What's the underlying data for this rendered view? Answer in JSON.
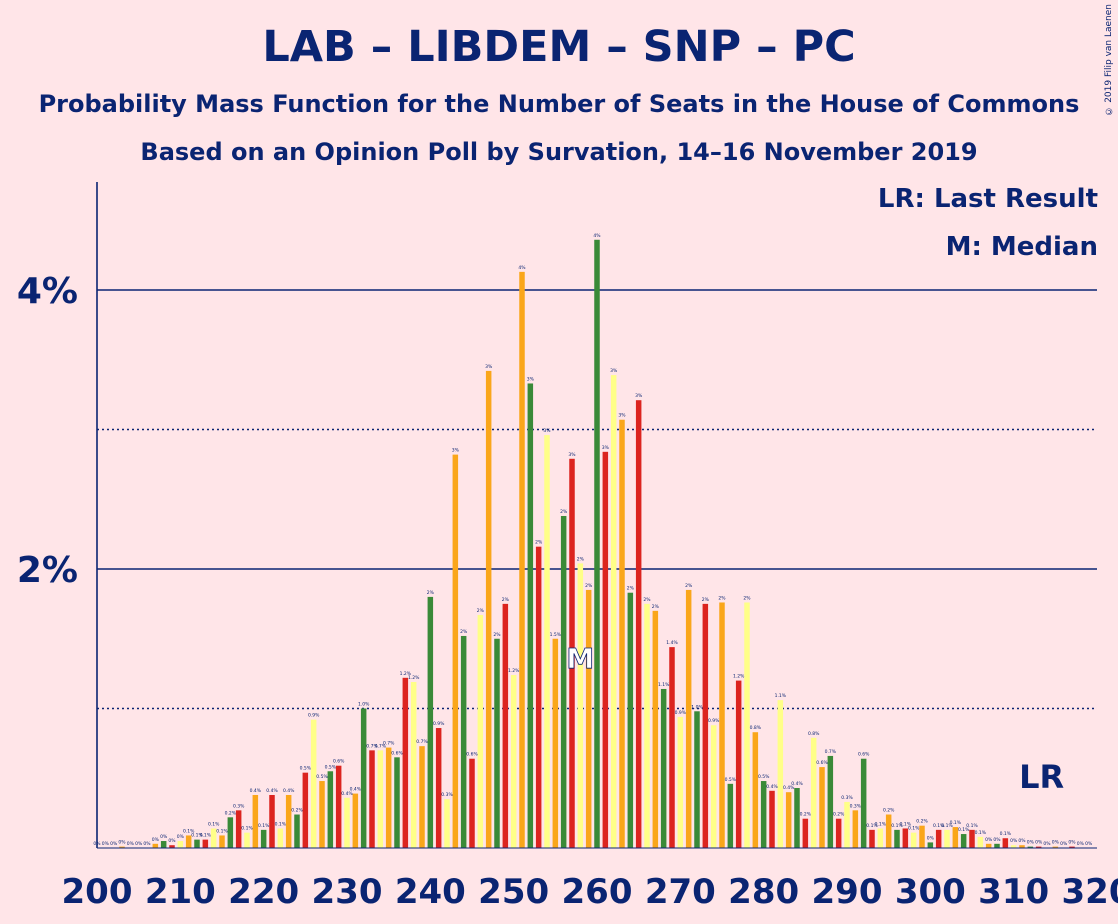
{
  "title": "LAB – LIBDEM – SNP – PC",
  "subtitle1": "Probability Mass Function for the Number of Seats in the House of Commons",
  "subtitle2": "Based on an Opinion Poll by Survation, 14–16 November 2019",
  "copyright": "© 2019 Filip van Laenen",
  "legend": {
    "lr": "LR: Last Result",
    "m": "M: Median"
  },
  "markers": {
    "lr_label": "LR",
    "lr_seat": 313,
    "median_label": "M",
    "median_seat": 258
  },
  "colors": {
    "background": "#FFE5E8",
    "text": "#0A2472",
    "palette": [
      "#3A8A38",
      "#DC241F",
      "#FFFF88",
      "#FAA61A"
    ]
  },
  "chart_data": {
    "type": "bar",
    "xlabel": "",
    "ylabel": "",
    "xlim": [
      200,
      320
    ],
    "ylim": [
      0,
      4.75
    ],
    "x_ticks": [
      200,
      210,
      220,
      230,
      240,
      250,
      260,
      270,
      280,
      290,
      300,
      310,
      320
    ],
    "y_ticks_solid": [
      {
        "value": 2,
        "label": "2%"
      },
      {
        "value": 4,
        "label": "4%"
      }
    ],
    "y_ticks_dotted": [
      1,
      3
    ],
    "seats": [
      200,
      201,
      202,
      203,
      204,
      205,
      206,
      207,
      208,
      209,
      210,
      211,
      212,
      213,
      214,
      215,
      216,
      217,
      218,
      219,
      220,
      221,
      222,
      223,
      224,
      225,
      226,
      227,
      228,
      229,
      230,
      231,
      232,
      233,
      234,
      235,
      236,
      237,
      238,
      239,
      240,
      241,
      242,
      243,
      244,
      245,
      246,
      247,
      248,
      249,
      250,
      251,
      252,
      253,
      254,
      255,
      256,
      257,
      258,
      259,
      260,
      261,
      262,
      263,
      264,
      265,
      266,
      267,
      268,
      269,
      270,
      271,
      272,
      273,
      274,
      275,
      276,
      277,
      278,
      279,
      280,
      281,
      282,
      283,
      284,
      285,
      286,
      287,
      288,
      289,
      290,
      291,
      292,
      293,
      294,
      295,
      296,
      297,
      298,
      299,
      300,
      301,
      302,
      303,
      304,
      305,
      306,
      307,
      308,
      309,
      310,
      311,
      312,
      313,
      314,
      315,
      316,
      317,
      318,
      319
    ],
    "values": [
      0,
      0,
      0,
      0.01,
      0,
      0,
      0,
      0.03,
      0.05,
      0.02,
      0.05,
      0.09,
      0.06,
      0.06,
      0.14,
      0.09,
      0.22,
      0.27,
      0.11,
      0.38,
      0.13,
      0.38,
      0.14,
      0.38,
      0.24,
      0.54,
      0.92,
      0.48,
      0.55,
      0.59,
      0.36,
      0.39,
      1,
      0.7,
      0.7,
      0.72,
      0.65,
      1.22,
      1.19,
      0.73,
      1.8,
      0.86,
      0.35,
      2.82,
      1.52,
      0.64,
      1.67,
      3.42,
      1.5,
      1.75,
      1.24,
      4.13,
      3.33,
      2.16,
      2.96,
      1.5,
      2.38,
      2.79,
      2.04,
      1.85,
      4.36,
      2.84,
      3.39,
      3.07,
      1.83,
      3.21,
      1.75,
      1.7,
      1.14,
      1.44,
      0.94,
      1.85,
      0.98,
      1.75,
      0.88,
      1.76,
      0.46,
      1.2,
      1.76,
      0.83,
      0.48,
      0.41,
      1.06,
      0.4,
      0.43,
      0.21,
      0.79,
      0.58,
      0.66,
      0.21,
      0.33,
      0.27,
      0.64,
      0.13,
      0.14,
      0.24,
      0.13,
      0.14,
      0.11,
      0.16,
      0.04,
      0.13,
      0.13,
      0.15,
      0.1,
      0.13,
      0.08,
      0.03,
      0.03,
      0.07,
      0.02,
      0.02,
      0.01,
      0.01,
      0,
      0.01,
      0,
      0.01,
      0,
      0
    ],
    "value_labels": [
      "0%",
      "0%",
      "0%",
      "0%",
      "0%",
      "0%",
      "0%",
      "0%",
      "0%",
      "0%",
      "0%",
      "0.1%",
      "0.1%",
      "0.1%",
      "0.1%",
      "0.1%",
      "0.2%",
      "0.3%",
      "0.1%",
      "0.4%",
      "0.1%",
      "0.4%",
      "0.1%",
      "0.4%",
      "0.2%",
      "0.5%",
      "0.9%",
      "0.5%",
      "0.5%",
      "0.6%",
      "0.4%",
      "0.4%",
      "1.0%",
      "0.7%",
      "0.7%",
      "0.7%",
      "0.6%",
      "1.2%",
      "1.2%",
      "0.7%",
      "2%",
      "0.9%",
      "0.3%",
      "3%",
      "2%",
      "0.6%",
      "2%",
      "3%",
      "2%",
      "2%",
      "1.2%",
      "4%",
      "3%",
      "2%",
      "3%",
      "1.5%",
      "2%",
      "3%",
      "2%",
      "2%",
      "4%",
      "3%",
      "3%",
      "3%",
      "2%",
      "3%",
      "2%",
      "2%",
      "1.1%",
      "1.4%",
      "0.9%",
      "2%",
      "1.0%",
      "2%",
      "0.9%",
      "2%",
      "0.5%",
      "1.2%",
      "2%",
      "0.8%",
      "0.5%",
      "0.4%",
      "1.1%",
      "0.4%",
      "0.4%",
      "0.2%",
      "0.8%",
      "0.6%",
      "0.7%",
      "0.2%",
      "0.3%",
      "0.3%",
      "0.6%",
      "0.1%",
      "0.1%",
      "0.2%",
      "0.1%",
      "0.1%",
      "0.1%",
      "0.2%",
      "0%",
      "0.1%",
      "0.1%",
      "0.1%",
      "0.1%",
      "0.1%",
      "0.1%",
      "0%",
      "0%",
      "0.1%",
      "0%",
      "0%",
      "0%",
      "0%",
      "0%",
      "0%",
      "0%",
      "0%",
      "0%",
      "0%"
    ]
  }
}
